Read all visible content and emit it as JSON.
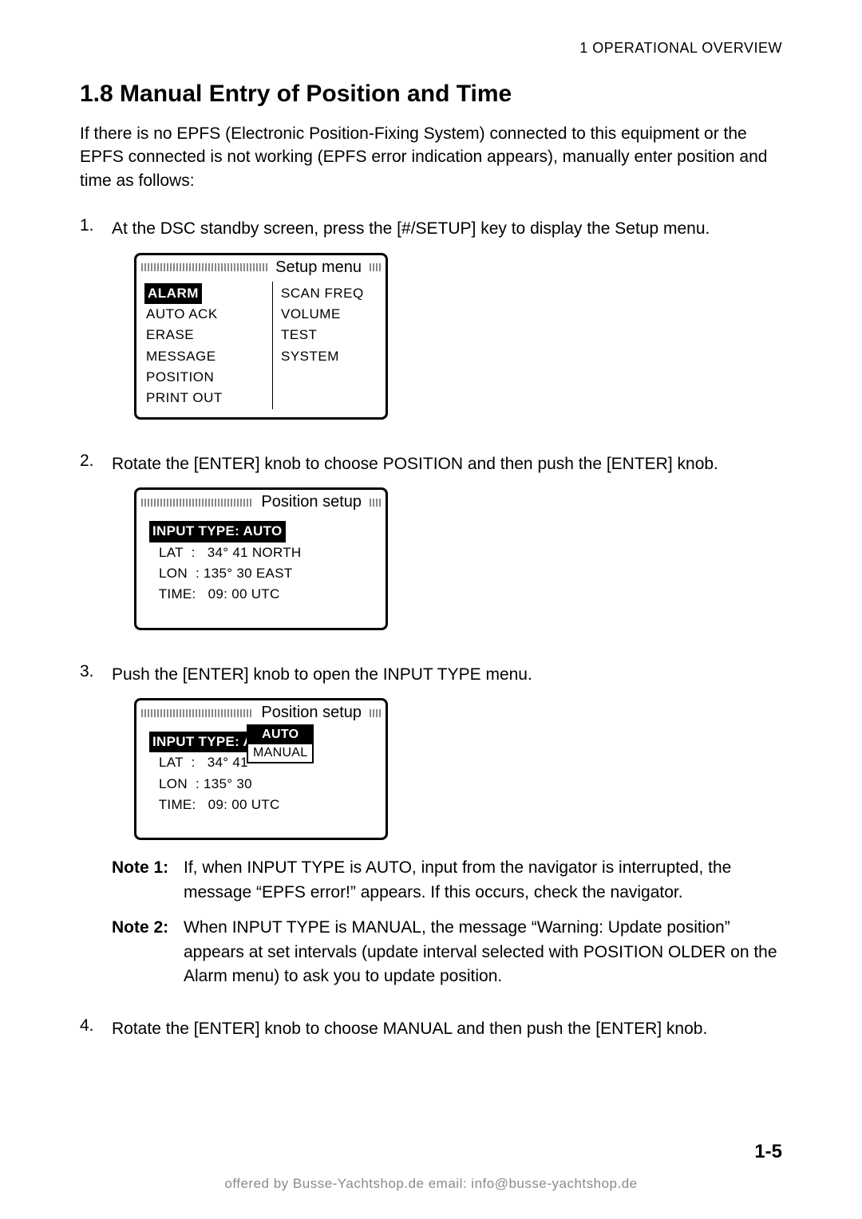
{
  "header": {
    "chapter": "1  OPERATIONAL OVERVIEW"
  },
  "title": "1.8 Manual Entry of Position and Time",
  "intro": "If there is no EPFS (Electronic Position-Fixing System) connected to this equipment or the EPFS connected is not working (EPFS error indication appears), manually enter position and time as follows:",
  "steps": [
    {
      "num": "1.",
      "text": "At the DSC standby screen, press the [#/SETUP] key to display the Setup menu."
    },
    {
      "num": "2.",
      "text": "Rotate the [ENTER] knob to choose POSITION and then push the [ENTER] knob."
    },
    {
      "num": "3.",
      "text": "Push the [ENTER] knob to open the INPUT TYPE menu."
    },
    {
      "num": "4.",
      "text": "Rotate the [ENTER] knob to choose MANUAL and then push the [ENTER] knob."
    }
  ],
  "setup_menu": {
    "title": "Setup menu",
    "left": [
      "ALARM",
      "AUTO ACK",
      "ERASE",
      "MESSAGE",
      "POSITION",
      "PRINT OUT"
    ],
    "right": [
      "SCAN FREQ",
      "",
      "VOLUME",
      "",
      "TEST",
      "SYSTEM"
    ],
    "selected": "ALARM"
  },
  "position_setup1": {
    "title": "Position setup",
    "input_type_label": "INPUT  TYPE: AUTO",
    "lat": "  LAT  :   34° 41 NORTH",
    "lon": "  LON  : 135° 30 EAST",
    "time": "  TIME:   09: 00 UTC"
  },
  "position_setup2": {
    "title": "Position setup",
    "input_type_label": "INPUT  TYPE: A",
    "lat": "  LAT  :   34° 41",
    "lon": "  LON  : 135° 30",
    "time": "  TIME:   09: 00 UTC",
    "dropdown": {
      "selected": "AUTO",
      "other": "MANUAL"
    }
  },
  "notes": [
    {
      "label": "Note 1:",
      "text": "If, when INPUT TYPE is AUTO, input from the navigator is interrupted, the message “EPFS error!” appears. If this occurs, check the navigator."
    },
    {
      "label": "Note 2:",
      "text": "When INPUT TYPE is MANUAL, the message “Warning: Update position” appears at set intervals (update interval selected with POSITION OLDER on the Alarm menu) to ask you to update position."
    }
  ],
  "page_number": "1-5",
  "footer": "offered by Busse-Yachtshop.de      email: info@busse-yachtshop.de"
}
